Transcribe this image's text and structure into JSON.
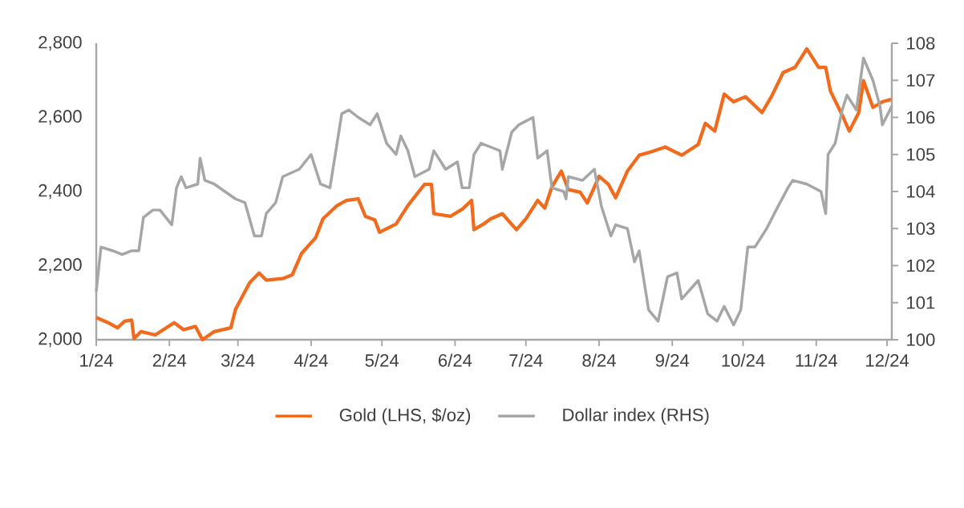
{
  "chart_data": {
    "type": "line",
    "xlim": [
      "2024-01-01",
      "2024-12-03"
    ],
    "xticks": [
      {
        "value": "2024-01-01",
        "label": "1/24"
      },
      {
        "value": "2024-02-01",
        "label": "2/24"
      },
      {
        "value": "2024-03-01",
        "label": "3/24"
      },
      {
        "value": "2024-04-01",
        "label": "4/24"
      },
      {
        "value": "2024-05-01",
        "label": "5/24"
      },
      {
        "value": "2024-06-01",
        "label": "6/24"
      },
      {
        "value": "2024-07-01",
        "label": "7/24"
      },
      {
        "value": "2024-08-01",
        "label": "8/24"
      },
      {
        "value": "2024-09-01",
        "label": "9/24"
      },
      {
        "value": "2024-10-01",
        "label": "10/24"
      },
      {
        "value": "2024-11-01",
        "label": "11/24"
      },
      {
        "value": "2024-12-01",
        "label": "12/24"
      }
    ],
    "ylim": [
      2000,
      2800
    ],
    "yticks": [
      {
        "value": 2000,
        "label": "2,000"
      },
      {
        "value": 2200,
        "label": "2,200"
      },
      {
        "value": 2400,
        "label": "2,400"
      },
      {
        "value": 2600,
        "label": "2,600"
      },
      {
        "value": 2800,
        "label": "2,800"
      }
    ],
    "y2lim": [
      100,
      108
    ],
    "y2ticks": [
      100,
      101,
      102,
      103,
      104,
      105,
      106,
      107,
      108
    ],
    "legend": "bottom",
    "marker": "none",
    "line_style": "solid",
    "series": [
      {
        "name": "Gold (LHS, $/oz)",
        "color": "#f26b1d",
        "x": [
          "2024-01-01",
          "2024-01-06",
          "2024-01-10",
          "2024-01-13",
          "2024-01-16",
          "2024-01-17",
          "2024-01-20",
          "2024-01-26",
          "2024-02-03",
          "2024-02-07",
          "2024-02-12",
          "2024-02-15",
          "2024-02-20",
          "2024-02-27",
          "2024-02-29",
          "2024-03-06",
          "2024-03-10",
          "2024-03-13",
          "2024-03-20",
          "2024-03-24",
          "2024-03-28",
          "2024-04-03",
          "2024-04-06",
          "2024-04-12",
          "2024-04-16",
          "2024-04-21",
          "2024-04-24",
          "2024-04-28",
          "2024-04-30",
          "2024-05-07",
          "2024-05-12",
          "2024-05-19",
          "2024-05-22",
          "2024-05-23",
          "2024-05-30",
          "2024-06-04",
          "2024-06-08",
          "2024-06-09",
          "2024-06-13",
          "2024-06-16",
          "2024-06-21",
          "2024-06-27",
          "2024-07-01",
          "2024-07-06",
          "2024-07-09",
          "2024-07-12",
          "2024-07-16",
          "2024-07-19",
          "2024-07-24",
          "2024-07-27",
          "2024-08-01",
          "2024-08-05",
          "2024-08-08",
          "2024-08-13",
          "2024-08-18",
          "2024-08-22",
          "2024-08-29",
          "2024-09-05",
          "2024-09-12",
          "2024-09-15",
          "2024-09-19",
          "2024-09-23",
          "2024-09-27",
          "2024-10-02",
          "2024-10-09",
          "2024-10-13",
          "2024-10-18",
          "2024-10-23",
          "2024-10-28",
          "2024-11-02",
          "2024-11-05",
          "2024-11-07",
          "2024-11-12",
          "2024-11-15",
          "2024-11-19",
          "2024-11-21",
          "2024-11-25",
          "2024-11-29",
          "2024-12-03"
        ],
        "values": [
          2060,
          2046,
          2032,
          2050,
          2053,
          2003,
          2022,
          2013,
          2046,
          2027,
          2036,
          2000,
          2022,
          2032,
          2082,
          2154,
          2180,
          2161,
          2165,
          2175,
          2233,
          2276,
          2326,
          2362,
          2376,
          2380,
          2333,
          2323,
          2290,
          2312,
          2362,
          2419,
          2419,
          2340,
          2333,
          2352,
          2376,
          2297,
          2312,
          2326,
          2340,
          2297,
          2326,
          2376,
          2355,
          2412,
          2455,
          2405,
          2398,
          2369,
          2441,
          2419,
          2383,
          2455,
          2498,
          2505,
          2520,
          2498,
          2527,
          2584,
          2563,
          2663,
          2642,
          2656,
          2613,
          2656,
          2721,
          2735,
          2785,
          2735,
          2735,
          2671,
          2606,
          2563,
          2613,
          2699,
          2627,
          2642,
          2649
        ]
      },
      {
        "name": "Dollar index (RHS)",
        "color": "#a6a6a6",
        "axis": "y2",
        "x": [
          "2024-01-01",
          "2024-01-03",
          "2024-01-08",
          "2024-01-12",
          "2024-01-16",
          "2024-01-19",
          "2024-01-21",
          "2024-01-25",
          "2024-01-28",
          "2024-02-02",
          "2024-02-04",
          "2024-02-06",
          "2024-02-08",
          "2024-02-13",
          "2024-02-14",
          "2024-02-16",
          "2024-02-20",
          "2024-02-29",
          "2024-03-04",
          "2024-03-08",
          "2024-03-11",
          "2024-03-13",
          "2024-03-17",
          "2024-03-20",
          "2024-03-27",
          "2024-04-01",
          "2024-04-05",
          "2024-04-09",
          "2024-04-12",
          "2024-04-14",
          "2024-04-17",
          "2024-04-21",
          "2024-04-26",
          "2024-04-29",
          "2024-05-03",
          "2024-05-07",
          "2024-05-09",
          "2024-05-12",
          "2024-05-15",
          "2024-05-21",
          "2024-05-23",
          "2024-05-28",
          "2024-06-02",
          "2024-06-04",
          "2024-06-07",
          "2024-06-09",
          "2024-06-12",
          "2024-06-16",
          "2024-06-20",
          "2024-06-21",
          "2024-06-25",
          "2024-06-28",
          "2024-07-01",
          "2024-07-04",
          "2024-07-06",
          "2024-07-10",
          "2024-07-12",
          "2024-07-17",
          "2024-07-18",
          "2024-07-19",
          "2024-07-25",
          "2024-07-30",
          "2024-08-02",
          "2024-08-06",
          "2024-08-08",
          "2024-08-13",
          "2024-08-16",
          "2024-08-18",
          "2024-08-22",
          "2024-08-26",
          "2024-08-30",
          "2024-09-03",
          "2024-09-05",
          "2024-09-12",
          "2024-09-16",
          "2024-09-20",
          "2024-09-23",
          "2024-09-27",
          "2024-09-30",
          "2024-10-03",
          "2024-10-06",
          "2024-10-11",
          "2024-10-15",
          "2024-10-20",
          "2024-10-22",
          "2024-10-28",
          "2024-11-03",
          "2024-11-05",
          "2024-11-06",
          "2024-11-09",
          "2024-11-12",
          "2024-11-14",
          "2024-11-18",
          "2024-11-21",
          "2024-11-25",
          "2024-11-28",
          "2024-11-29",
          "2024-12-03"
        ],
        "values": [
          101.3,
          102.5,
          102.4,
          102.3,
          102.4,
          102.4,
          103.3,
          103.5,
          103.5,
          103.1,
          104.1,
          104.4,
          104.1,
          104.2,
          104.9,
          104.3,
          104.2,
          103.8,
          103.7,
          102.8,
          102.8,
          103.4,
          103.7,
          104.4,
          104.6,
          105.0,
          104.2,
          104.1,
          105.3,
          106.1,
          106.2,
          106.0,
          105.8,
          106.1,
          105.3,
          105.0,
          105.5,
          105.1,
          104.4,
          104.6,
          105.1,
          104.6,
          104.8,
          104.1,
          104.1,
          105.0,
          105.3,
          105.2,
          105.1,
          104.6,
          105.6,
          105.8,
          105.9,
          106.0,
          104.9,
          105.1,
          104.1,
          104.0,
          103.8,
          104.4,
          104.3,
          104.6,
          103.6,
          102.8,
          103.1,
          103.0,
          102.1,
          102.4,
          100.8,
          100.5,
          101.7,
          101.8,
          101.1,
          101.6,
          100.7,
          100.5,
          100.9,
          100.4,
          100.8,
          102.5,
          102.5,
          103.0,
          103.5,
          104.1,
          104.3,
          104.2,
          104.0,
          103.4,
          105.0,
          105.3,
          106.2,
          106.6,
          106.2,
          107.6,
          107.0,
          106.3,
          105.8,
          106.3
        ]
      }
    ]
  }
}
